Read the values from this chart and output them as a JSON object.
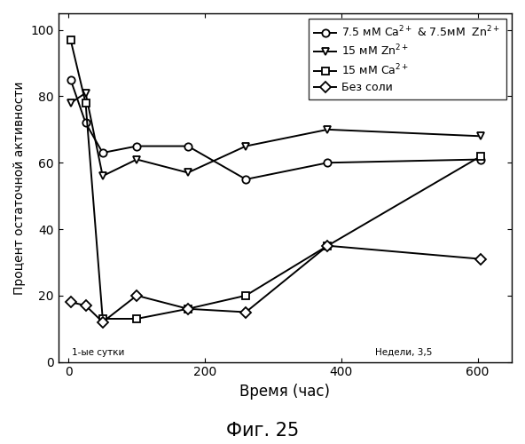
{
  "title": "Фиг. 25",
  "xlabel": "Время (час)",
  "ylabel": "Процент остаточной активности",
  "ylim": [
    0,
    105
  ],
  "xlim": [
    -15,
    650
  ],
  "yticks": [
    0,
    20,
    40,
    60,
    80,
    100
  ],
  "xticks": [
    0,
    200,
    400,
    600
  ],
  "annotation_left": "1-ые сутки",
  "annotation_right": "Недели, 3,5",
  "series": {
    "ca_zn": {
      "x": [
        3,
        25,
        50,
        100,
        175,
        260,
        380,
        605
      ],
      "y": [
        85,
        72,
        63,
        65,
        65,
        55,
        60,
        61
      ],
      "marker": "o",
      "linestyle": "-"
    },
    "zn": {
      "x": [
        3,
        25,
        50,
        100,
        175,
        260,
        380,
        605
      ],
      "y": [
        78,
        81,
        56,
        61,
        57,
        65,
        70,
        68
      ],
      "marker": "v",
      "linestyle": "-"
    },
    "ca": {
      "x": [
        3,
        25,
        50,
        100,
        175,
        260,
        380,
        605
      ],
      "y": [
        97,
        78,
        13,
        13,
        16,
        20,
        35,
        62
      ],
      "marker": "s",
      "linestyle": "-"
    },
    "no_salt": {
      "x": [
        3,
        25,
        50,
        100,
        175,
        260,
        380,
        605
      ],
      "y": [
        18,
        17,
        12,
        20,
        16,
        15,
        35,
        31
      ],
      "marker": "D",
      "linestyle": "-"
    }
  },
  "legend_labels": {
    "ca_zn": "7.5 мМ Ca$^{2+}$ & 7.5мМ  Zn$^{2+}$",
    "zn": "15 мМ Zn$^{2+}$",
    "ca": "15 мМ Ca$^{2+}$",
    "no_salt": "Без соли"
  },
  "bg_color": "#ffffff",
  "figsize": [
    5.92,
    5.0
  ],
  "dpi": 100
}
